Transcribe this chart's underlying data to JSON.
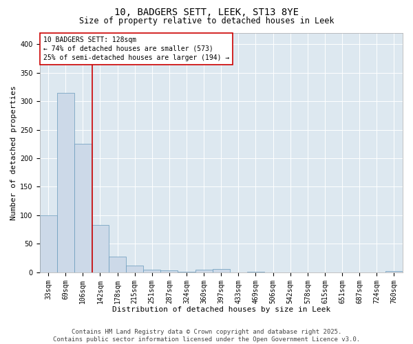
{
  "title_line1": "10, BADGERS SETT, LEEK, ST13 8YE",
  "title_line2": "Size of property relative to detached houses in Leek",
  "xlabel": "Distribution of detached houses by size in Leek",
  "ylabel": "Number of detached properties",
  "categories": [
    "33sqm",
    "69sqm",
    "106sqm",
    "142sqm",
    "178sqm",
    "215sqm",
    "251sqm",
    "287sqm",
    "324sqm",
    "360sqm",
    "397sqm",
    "433sqm",
    "469sqm",
    "506sqm",
    "542sqm",
    "578sqm",
    "615sqm",
    "651sqm",
    "687sqm",
    "724sqm",
    "760sqm"
  ],
  "values": [
    100,
    315,
    225,
    83,
    28,
    12,
    5,
    4,
    1,
    5,
    6,
    0,
    1,
    0,
    0,
    0,
    0,
    0,
    0,
    0,
    2
  ],
  "bar_color": "#ccd9e8",
  "bar_edge_color": "#6699bb",
  "vline_color": "#cc0000",
  "vline_pos": 2.55,
  "annotation_text": "10 BADGERS SETT: 128sqm\n← 74% of detached houses are smaller (573)\n25% of semi-detached houses are larger (194) →",
  "annotation_box_facecolor": "#ffffff",
  "annotation_box_edgecolor": "#cc0000",
  "ylim": [
    0,
    420
  ],
  "yticks": [
    0,
    50,
    100,
    150,
    200,
    250,
    300,
    350,
    400
  ],
  "plot_bg_color": "#dde8f0",
  "fig_bg_color": "#ffffff",
  "title_fontsize": 10,
  "subtitle_fontsize": 8.5,
  "axis_label_fontsize": 8,
  "tick_fontsize": 7,
  "annotation_fontsize": 7,
  "footer_fontsize": 6.5,
  "ylabel_fontsize": 8,
  "footer_line1": "Contains HM Land Registry data © Crown copyright and database right 2025.",
  "footer_line2": "Contains public sector information licensed under the Open Government Licence v3.0."
}
